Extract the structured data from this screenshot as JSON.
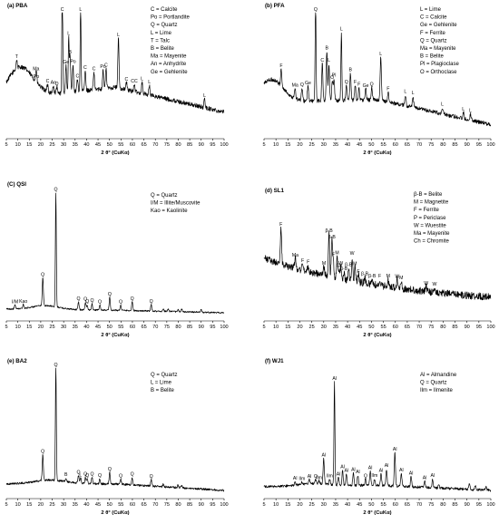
{
  "chart_data": [
    {
      "type": "line",
      "title": "(a) PBA",
      "xlabel": "2 θ° (CuKα)",
      "xlim": [
        5,
        100
      ],
      "xticks": [
        5,
        10,
        15,
        20,
        25,
        30,
        35,
        40,
        45,
        50,
        55,
        60,
        65,
        70,
        75,
        80,
        85,
        90,
        95,
        100
      ],
      "legend": [
        "C = Calcite",
        "Po = Portlandite",
        "Q = Quartz",
        "L = Lime",
        "T = Talc",
        "B = Belite",
        "Ma = Mayenite",
        "An = Anhydrite",
        "Ge = Gehlenite"
      ],
      "background": {
        "kind": "hump",
        "start": 0.3,
        "mid": 0.4,
        "end": 0.2,
        "center": 11,
        "height": 0.25,
        "width": 8
      },
      "noise": 0.018,
      "peaks": [
        {
          "x": 9.5,
          "h": 0.07,
          "label": "T"
        },
        {
          "x": 18.0,
          "h": 0.08,
          "label": "Ma"
        },
        {
          "x": 18.1,
          "h": 0.02,
          "label": "Po"
        },
        {
          "x": 23.0,
          "h": 0.06,
          "label": "C"
        },
        {
          "x": 25.5,
          "h": 0.06,
          "label": "An"
        },
        {
          "x": 27.0,
          "h": 0.05,
          "label": "Q"
        },
        {
          "x": 29.4,
          "h": 0.9,
          "label": "C"
        },
        {
          "x": 31.0,
          "h": 0.22,
          "label": "Ge"
        },
        {
          "x": 32.2,
          "h": 0.45,
          "label": "L"
        },
        {
          "x": 32.8,
          "h": 0.3,
          "label": "B"
        },
        {
          "x": 34.1,
          "h": 0.22,
          "label": "Po"
        },
        {
          "x": 36.0,
          "h": 0.1,
          "label": "C"
        },
        {
          "x": 37.4,
          "h": 0.7,
          "label": "L"
        },
        {
          "x": 39.4,
          "h": 0.16,
          "label": "C"
        },
        {
          "x": 43.2,
          "h": 0.14,
          "label": "C"
        },
        {
          "x": 47.2,
          "h": 0.15,
          "label": "Po"
        },
        {
          "x": 48.5,
          "h": 0.16,
          "label": "C"
        },
        {
          "x": 53.9,
          "h": 0.4,
          "label": "L"
        },
        {
          "x": 57.4,
          "h": 0.06,
          "label": "C"
        },
        {
          "x": 60.8,
          "h": 0.06,
          "label": "CC"
        },
        {
          "x": 64.2,
          "h": 0.09,
          "label": "L"
        },
        {
          "x": 67.4,
          "h": 0.08,
          "label": "L"
        },
        {
          "x": 91.5,
          "h": 0.07,
          "label": "L"
        }
      ]
    },
    {
      "type": "line",
      "title": "(b) PFA",
      "xlabel": "2 θ° (CuKα)",
      "xlim": [
        5,
        100
      ],
      "xticks": [
        5,
        10,
        15,
        20,
        25,
        30,
        35,
        40,
        45,
        50,
        55,
        60,
        65,
        70,
        75,
        80,
        85,
        90,
        95,
        100
      ],
      "legend": [
        "L = Lime",
        "C = Calcite",
        "Ge = Gehlenite",
        "F = Ferrite",
        "Q = Quartz",
        "Ma = Mayenite",
        "B = Belite",
        "Pl = Plagioclase",
        "O = Orthoclase"
      ],
      "background": {
        "kind": "hump",
        "start": 0.28,
        "mid": 0.3,
        "end": 0.1,
        "center": 8,
        "height": 0.18,
        "width": 7
      },
      "noise": 0.016,
      "peaks": [
        {
          "x": 12.2,
          "h": 0.14,
          "label": "F"
        },
        {
          "x": 18.0,
          "h": 0.08,
          "label": "Ma"
        },
        {
          "x": 20.9,
          "h": 0.1,
          "label": "Q"
        },
        {
          "x": 23.4,
          "h": 0.12,
          "label": "Ge"
        },
        {
          "x": 26.6,
          "h": 0.8,
          "label": "Q"
        },
        {
          "x": 29.4,
          "h": 0.3,
          "label": "C"
        },
        {
          "x": 31.3,
          "h": 0.4,
          "label": "B"
        },
        {
          "x": 32.2,
          "h": 0.3,
          "label": "L"
        },
        {
          "x": 33.6,
          "h": 0.16,
          "label": "O"
        },
        {
          "x": 34.3,
          "h": 0.18,
          "label": "Pl"
        },
        {
          "x": 37.4,
          "h": 0.55,
          "label": "L"
        },
        {
          "x": 39.5,
          "h": 0.12,
          "label": "Q"
        },
        {
          "x": 41.2,
          "h": 0.22,
          "label": "B"
        },
        {
          "x": 43.2,
          "h": 0.12,
          "label": "F"
        },
        {
          "x": 44.8,
          "h": 0.1,
          "label": "F"
        },
        {
          "x": 47.6,
          "h": 0.09,
          "label": "Ge"
        },
        {
          "x": 50.1,
          "h": 0.1,
          "label": "Q"
        },
        {
          "x": 53.9,
          "h": 0.35,
          "label": "L"
        },
        {
          "x": 57.0,
          "h": 0.08,
          "label": "F"
        },
        {
          "x": 64.2,
          "h": 0.09,
          "label": "L"
        },
        {
          "x": 67.4,
          "h": 0.09,
          "label": "L"
        },
        {
          "x": 79.7,
          "h": 0.05,
          "label": "L"
        },
        {
          "x": 88.5,
          "h": 0.05,
          "label": "L"
        },
        {
          "x": 91.5,
          "h": 0.05,
          "label": "L"
        }
      ]
    },
    {
      "type": "line",
      "title": "(C) QSI",
      "xlabel": "2 θ° (CuKα)",
      "xlim": [
        5,
        100
      ],
      "xticks": [
        5,
        10,
        15,
        20,
        25,
        30,
        35,
        40,
        45,
        50,
        55,
        60,
        65,
        70,
        75,
        80,
        85,
        90,
        95,
        100
      ],
      "legend": [
        "Q = Quartz",
        "I/M = Illite/Muscovite",
        "Kao = Kaolinite"
      ],
      "background": {
        "kind": "flat",
        "start": 0.08,
        "mid": 0.07,
        "end": 0.05,
        "center": 22,
        "height": 0.03,
        "width": 8
      },
      "noise": 0.006,
      "peaks": [
        {
          "x": 8.8,
          "h": 0.03,
          "label": "I/M"
        },
        {
          "x": 12.4,
          "h": 0.03,
          "label": "Kao"
        },
        {
          "x": 20.9,
          "h": 0.22,
          "label": "Q"
        },
        {
          "x": 26.6,
          "h": 0.9,
          "label": "Q"
        },
        {
          "x": 36.5,
          "h": 0.06,
          "label": "Q"
        },
        {
          "x": 39.5,
          "h": 0.06,
          "label": "Q"
        },
        {
          "x": 40.3,
          "h": 0.04,
          "label": "Q"
        },
        {
          "x": 42.4,
          "h": 0.05,
          "label": "Q"
        },
        {
          "x": 45.8,
          "h": 0.04,
          "label": "Q"
        },
        {
          "x": 50.1,
          "h": 0.1,
          "label": "Q"
        },
        {
          "x": 54.9,
          "h": 0.04,
          "label": "Q"
        },
        {
          "x": 59.9,
          "h": 0.07,
          "label": "Q"
        },
        {
          "x": 68.2,
          "h": 0.05,
          "label": "Q"
        },
        {
          "x": 73.5,
          "h": 0.02,
          "label": ""
        },
        {
          "x": 75.6,
          "h": 0.02,
          "label": ""
        },
        {
          "x": 79.9,
          "h": 0.02,
          "label": ""
        },
        {
          "x": 81.5,
          "h": 0.02,
          "label": ""
        },
        {
          "x": 90.0,
          "h": 0.02,
          "label": ""
        }
      ]
    },
    {
      "type": "line",
      "title": "(d) SL1",
      "xlabel": "2 θ° (CuKα)",
      "xlim": [
        5,
        100
      ],
      "xticks": [
        5,
        10,
        15,
        20,
        25,
        30,
        35,
        40,
        45,
        50,
        55,
        60,
        65,
        70,
        75,
        80,
        85,
        90,
        95,
        100
      ],
      "legend": [
        "β-B = Belite",
        "M = Magnetite",
        "F = Ferrite",
        "P = Periclase",
        "W = Wuestite",
        "Ma = Mayenite",
        "Ch = Chromite"
      ],
      "background": {
        "kind": "decay",
        "start": 0.5,
        "mid": 0.38,
        "end": 0.1,
        "center": 30,
        "height": 0.05,
        "width": 10
      },
      "noise": 0.03,
      "peaks": [
        {
          "x": 12.1,
          "h": 0.3,
          "label": "F"
        },
        {
          "x": 18.1,
          "h": 0.08,
          "label": "Ma"
        },
        {
          "x": 21.2,
          "h": 0.05,
          "label": "F"
        },
        {
          "x": 23.5,
          "h": 0.05,
          "label": "F"
        },
        {
          "x": 30.1,
          "h": 0.07,
          "label": "M"
        },
        {
          "x": 32.2,
          "h": 0.35,
          "label": "β-B"
        },
        {
          "x": 33.4,
          "h": 0.3,
          "label": "β-B"
        },
        {
          "x": 34.0,
          "h": 0.16,
          "label": "F"
        },
        {
          "x": 35.6,
          "h": 0.18,
          "label": "M"
        },
        {
          "x": 36.5,
          "h": 0.08,
          "label": "Ch"
        },
        {
          "x": 37.2,
          "h": 0.1,
          "label": "W"
        },
        {
          "x": 38.5,
          "h": 0.06,
          "label": "β-B"
        },
        {
          "x": 40.4,
          "h": 0.1,
          "label": "β-B"
        },
        {
          "x": 41.9,
          "h": 0.2,
          "label": "W"
        },
        {
          "x": 43.1,
          "h": 0.12,
          "label": "M"
        },
        {
          "x": 44.5,
          "h": 0.06,
          "label": "F"
        },
        {
          "x": 47.2,
          "h": 0.05,
          "label": "β-B"
        },
        {
          "x": 50.3,
          "h": 0.04,
          "label": "β-B"
        },
        {
          "x": 53.5,
          "h": 0.05,
          "label": "F"
        },
        {
          "x": 57.0,
          "h": 0.06,
          "label": "M"
        },
        {
          "x": 60.8,
          "h": 0.07,
          "label": "W"
        },
        {
          "x": 62.5,
          "h": 0.06,
          "label": "M"
        },
        {
          "x": 72.9,
          "h": 0.04,
          "label": "W"
        },
        {
          "x": 76.4,
          "h": 0.04,
          "label": "W"
        }
      ]
    },
    {
      "type": "line",
      "title": "(e) BA2",
      "xlabel": "2 θ° (CuKα)",
      "xlim": [
        5,
        100
      ],
      "xticks": [
        5,
        10,
        15,
        20,
        25,
        30,
        35,
        40,
        45,
        50,
        55,
        60,
        65,
        70,
        75,
        80,
        85,
        90,
        95,
        100
      ],
      "legend": [
        "Q = Quartz",
        "L = Lime",
        "B = Belite"
      ],
      "background": {
        "kind": "hump",
        "start": 0.1,
        "mid": 0.1,
        "end": 0.05,
        "center": 24,
        "height": 0.03,
        "width": 10
      },
      "noise": 0.008,
      "peaks": [
        {
          "x": 20.9,
          "h": 0.2,
          "label": "Q"
        },
        {
          "x": 26.6,
          "h": 0.9,
          "label": "Q"
        },
        {
          "x": 31.0,
          "h": 0.03,
          "label": "B"
        },
        {
          "x": 36.5,
          "h": 0.06,
          "label": "Q"
        },
        {
          "x": 37.4,
          "h": 0.04,
          "label": "L"
        },
        {
          "x": 39.5,
          "h": 0.05,
          "label": "Q"
        },
        {
          "x": 40.3,
          "h": 0.04,
          "label": "Q"
        },
        {
          "x": 42.4,
          "h": 0.05,
          "label": "Q"
        },
        {
          "x": 45.8,
          "h": 0.04,
          "label": "Q"
        },
        {
          "x": 50.1,
          "h": 0.09,
          "label": "Q"
        },
        {
          "x": 54.9,
          "h": 0.04,
          "label": "Q"
        },
        {
          "x": 59.9,
          "h": 0.06,
          "label": "Q"
        },
        {
          "x": 68.2,
          "h": 0.05,
          "label": "Q"
        },
        {
          "x": 73.5,
          "h": 0.02,
          "label": ""
        },
        {
          "x": 79.9,
          "h": 0.02,
          "label": ""
        },
        {
          "x": 81.5,
          "h": 0.02,
          "label": ""
        }
      ]
    },
    {
      "type": "line",
      "title": "(f) WJ1",
      "xlabel": "2 θ° (CuKα)",
      "xlim": [
        5,
        100
      ],
      "xticks": [
        5,
        10,
        15,
        20,
        25,
        30,
        35,
        40,
        45,
        50,
        55,
        60,
        65,
        70,
        75,
        80,
        85,
        90,
        95,
        100
      ],
      "legend": [
        "Al = Almandine",
        "Q = Quartz",
        "Ilm = Ilmenite"
      ],
      "background": {
        "kind": "hump",
        "start": 0.08,
        "mid": 0.09,
        "end": 0.05,
        "center": 26,
        "height": 0.02,
        "width": 8
      },
      "noise": 0.01,
      "peaks": [
        {
          "x": 18.0,
          "h": 0.03,
          "label": "Al"
        },
        {
          "x": 20.9,
          "h": 0.02,
          "label": "Ilm"
        },
        {
          "x": 24.0,
          "h": 0.03,
          "label": "Al"
        },
        {
          "x": 26.6,
          "h": 0.03,
          "label": "Q"
        },
        {
          "x": 28.0,
          "h": 0.02,
          "label": "Ilm"
        },
        {
          "x": 30.0,
          "h": 0.2,
          "label": "Al"
        },
        {
          "x": 32.5,
          "h": 0.04,
          "label": "Ilm"
        },
        {
          "x": 34.5,
          "h": 0.8,
          "label": "Al"
        },
        {
          "x": 36.2,
          "h": 0.06,
          "label": "Al"
        },
        {
          "x": 37.9,
          "h": 0.12,
          "label": "Al"
        },
        {
          "x": 39.5,
          "h": 0.09,
          "label": "Al"
        },
        {
          "x": 42.4,
          "h": 0.1,
          "label": "Al"
        },
        {
          "x": 44.3,
          "h": 0.08,
          "label": "Al"
        },
        {
          "x": 47.5,
          "h": 0.05,
          "label": "Q"
        },
        {
          "x": 49.5,
          "h": 0.11,
          "label": "Al"
        },
        {
          "x": 51.3,
          "h": 0.05,
          "label": "Ilm"
        },
        {
          "x": 54.0,
          "h": 0.09,
          "label": "Al"
        },
        {
          "x": 56.3,
          "h": 0.13,
          "label": "Al"
        },
        {
          "x": 59.8,
          "h": 0.26,
          "label": "Al"
        },
        {
          "x": 62.5,
          "h": 0.1,
          "label": "Al"
        },
        {
          "x": 66.6,
          "h": 0.08,
          "label": "Al"
        },
        {
          "x": 72.3,
          "h": 0.05,
          "label": "Al"
        },
        {
          "x": 75.6,
          "h": 0.07,
          "label": "Al"
        },
        {
          "x": 78.2,
          "h": 0.03,
          "label": ""
        },
        {
          "x": 91.0,
          "h": 0.04,
          "label": ""
        },
        {
          "x": 93.5,
          "h": 0.03,
          "label": ""
        },
        {
          "x": 98.0,
          "h": 0.03,
          "label": ""
        }
      ]
    }
  ]
}
